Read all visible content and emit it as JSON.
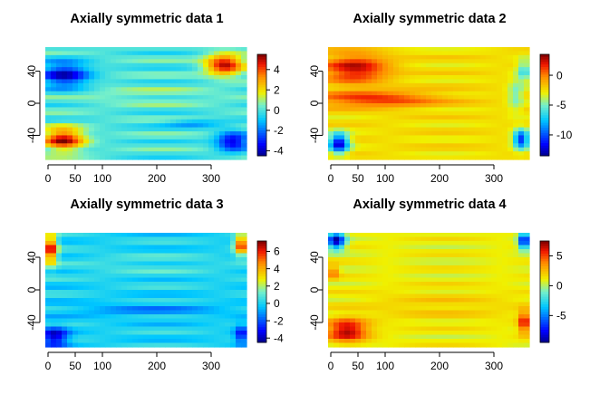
{
  "panels": [
    {
      "title": "Axially symmetric data  1",
      "colorbar_ticks": [
        4,
        2,
        0,
        -2,
        -4
      ],
      "chart_data": {
        "type": "heatmap",
        "title": "Axially symmetric data  1",
        "xlabel": "",
        "ylabel": "",
        "xlim": [
          -5,
          365
        ],
        "ylim": [
          -70,
          70
        ],
        "x_ticks": [
          0,
          50,
          100,
          200,
          300
        ],
        "y_ticks": [
          40,
          0,
          -40
        ],
        "zlim": [
          -4.5,
          5.5
        ],
        "colorbar_ticks": [
          4,
          2,
          0,
          -2,
          -4
        ],
        "features": [
          {
            "x": 30,
            "y": 35,
            "sx": 45,
            "sy": 16,
            "value": -3.8
          },
          {
            "x": 325,
            "y": 48,
            "sx": 35,
            "sy": 13,
            "value": 5.0
          },
          {
            "x": 28,
            "y": -45,
            "sx": 38,
            "sy": 14,
            "value": 5.0
          },
          {
            "x": 340,
            "y": -48,
            "sx": 30,
            "sy": 12,
            "value": -3.8
          },
          {
            "x": 270,
            "y": -25,
            "sx": 55,
            "sy": 5,
            "value": -1.5
          },
          {
            "x": 180,
            "y": 10,
            "sx": 150,
            "sy": 12,
            "value": 0.6
          }
        ],
        "base_value": 0
      }
    },
    {
      "title": "Axially symmetric data  2",
      "colorbar_ticks": [
        0,
        -5,
        -10
      ],
      "chart_data": {
        "type": "heatmap",
        "title": "Axially symmetric data  2",
        "xlabel": "",
        "ylabel": "",
        "xlim": [
          -5,
          365
        ],
        "ylim": [
          -70,
          70
        ],
        "x_ticks": [
          0,
          50,
          100,
          200,
          300
        ],
        "y_ticks": [
          40,
          0,
          -40
        ],
        "zlim": [
          -13.5,
          3.5
        ],
        "colorbar_ticks": [
          0,
          -5,
          -10
        ],
        "features": [
          {
            "x": 45,
            "y": 43,
            "sx": 60,
            "sy": 18,
            "value": 2.5
          },
          {
            "x": 80,
            "y": 5,
            "sx": 120,
            "sy": 10,
            "value": 1.5
          },
          {
            "x": 15,
            "y": -50,
            "sx": 18,
            "sy": 12,
            "value": -12.5
          },
          {
            "x": 350,
            "y": -45,
            "sx": 14,
            "sy": 12,
            "value": -11
          },
          {
            "x": 355,
            "y": 40,
            "sx": 12,
            "sy": 14,
            "value": -6
          },
          {
            "x": 340,
            "y": 10,
            "sx": 14,
            "sy": 20,
            "value": -5
          }
        ],
        "base_value": -2.5
      }
    },
    {
      "title": "Axially symmetric data  3",
      "colorbar_ticks": [
        6,
        4,
        2,
        0,
        -2,
        -4
      ],
      "chart_data": {
        "type": "heatmap",
        "title": "Axially symmetric data  3",
        "xlabel": "",
        "ylabel": "",
        "xlim": [
          -5,
          365
        ],
        "ylim": [
          -70,
          70
        ],
        "x_ticks": [
          0,
          50,
          100,
          200,
          300
        ],
        "y_ticks": [
          40,
          0,
          -40
        ],
        "zlim": [
          -4.5,
          7.2
        ],
        "colorbar_ticks": [
          6,
          4,
          2,
          0,
          -2,
          -4
        ],
        "features": [
          {
            "x": 5,
            "y": 50,
            "sx": 12,
            "sy": 18,
            "value": 6.5
          },
          {
            "x": 355,
            "y": 55,
            "sx": 12,
            "sy": 12,
            "value": 6.0
          },
          {
            "x": 12,
            "y": -58,
            "sx": 25,
            "sy": 12,
            "value": -4.0
          },
          {
            "x": 355,
            "y": -55,
            "sx": 12,
            "sy": 12,
            "value": -3.0
          },
          {
            "x": 180,
            "y": -25,
            "sx": 150,
            "sy": 8,
            "value": -1.2
          },
          {
            "x": 180,
            "y": 30,
            "sx": 160,
            "sy": 15,
            "value": 0.6
          }
        ],
        "base_value": 0
      }
    },
    {
      "title": "Axially symmetric data  4",
      "colorbar_ticks": [
        5,
        0,
        -5
      ],
      "chart_data": {
        "type": "heatmap",
        "title": "Axially symmetric data  4",
        "xlabel": "",
        "ylabel": "",
        "xlim": [
          -5,
          365
        ],
        "ylim": [
          -70,
          70
        ],
        "x_ticks": [
          0,
          50,
          100,
          200,
          300
        ],
        "y_ticks": [
          40,
          0,
          -40
        ],
        "zlim": [
          -9.5,
          7.5
        ],
        "colorbar_ticks": [
          5,
          0,
          -5
        ],
        "features": [
          {
            "x": 10,
            "y": 60,
            "sx": 16,
            "sy": 10,
            "value": -9.0
          },
          {
            "x": 355,
            "y": 60,
            "sx": 10,
            "sy": 10,
            "value": -8.0
          },
          {
            "x": 30,
            "y": -50,
            "sx": 38,
            "sy": 14,
            "value": 7.0
          },
          {
            "x": 355,
            "y": -40,
            "sx": 10,
            "sy": 14,
            "value": 6.0
          },
          {
            "x": 5,
            "y": 22,
            "sx": 10,
            "sy": 8,
            "value": 4.5
          },
          {
            "x": 200,
            "y": -20,
            "sx": 160,
            "sy": 20,
            "value": 2.0
          }
        ],
        "base_value": 1
      }
    }
  ]
}
